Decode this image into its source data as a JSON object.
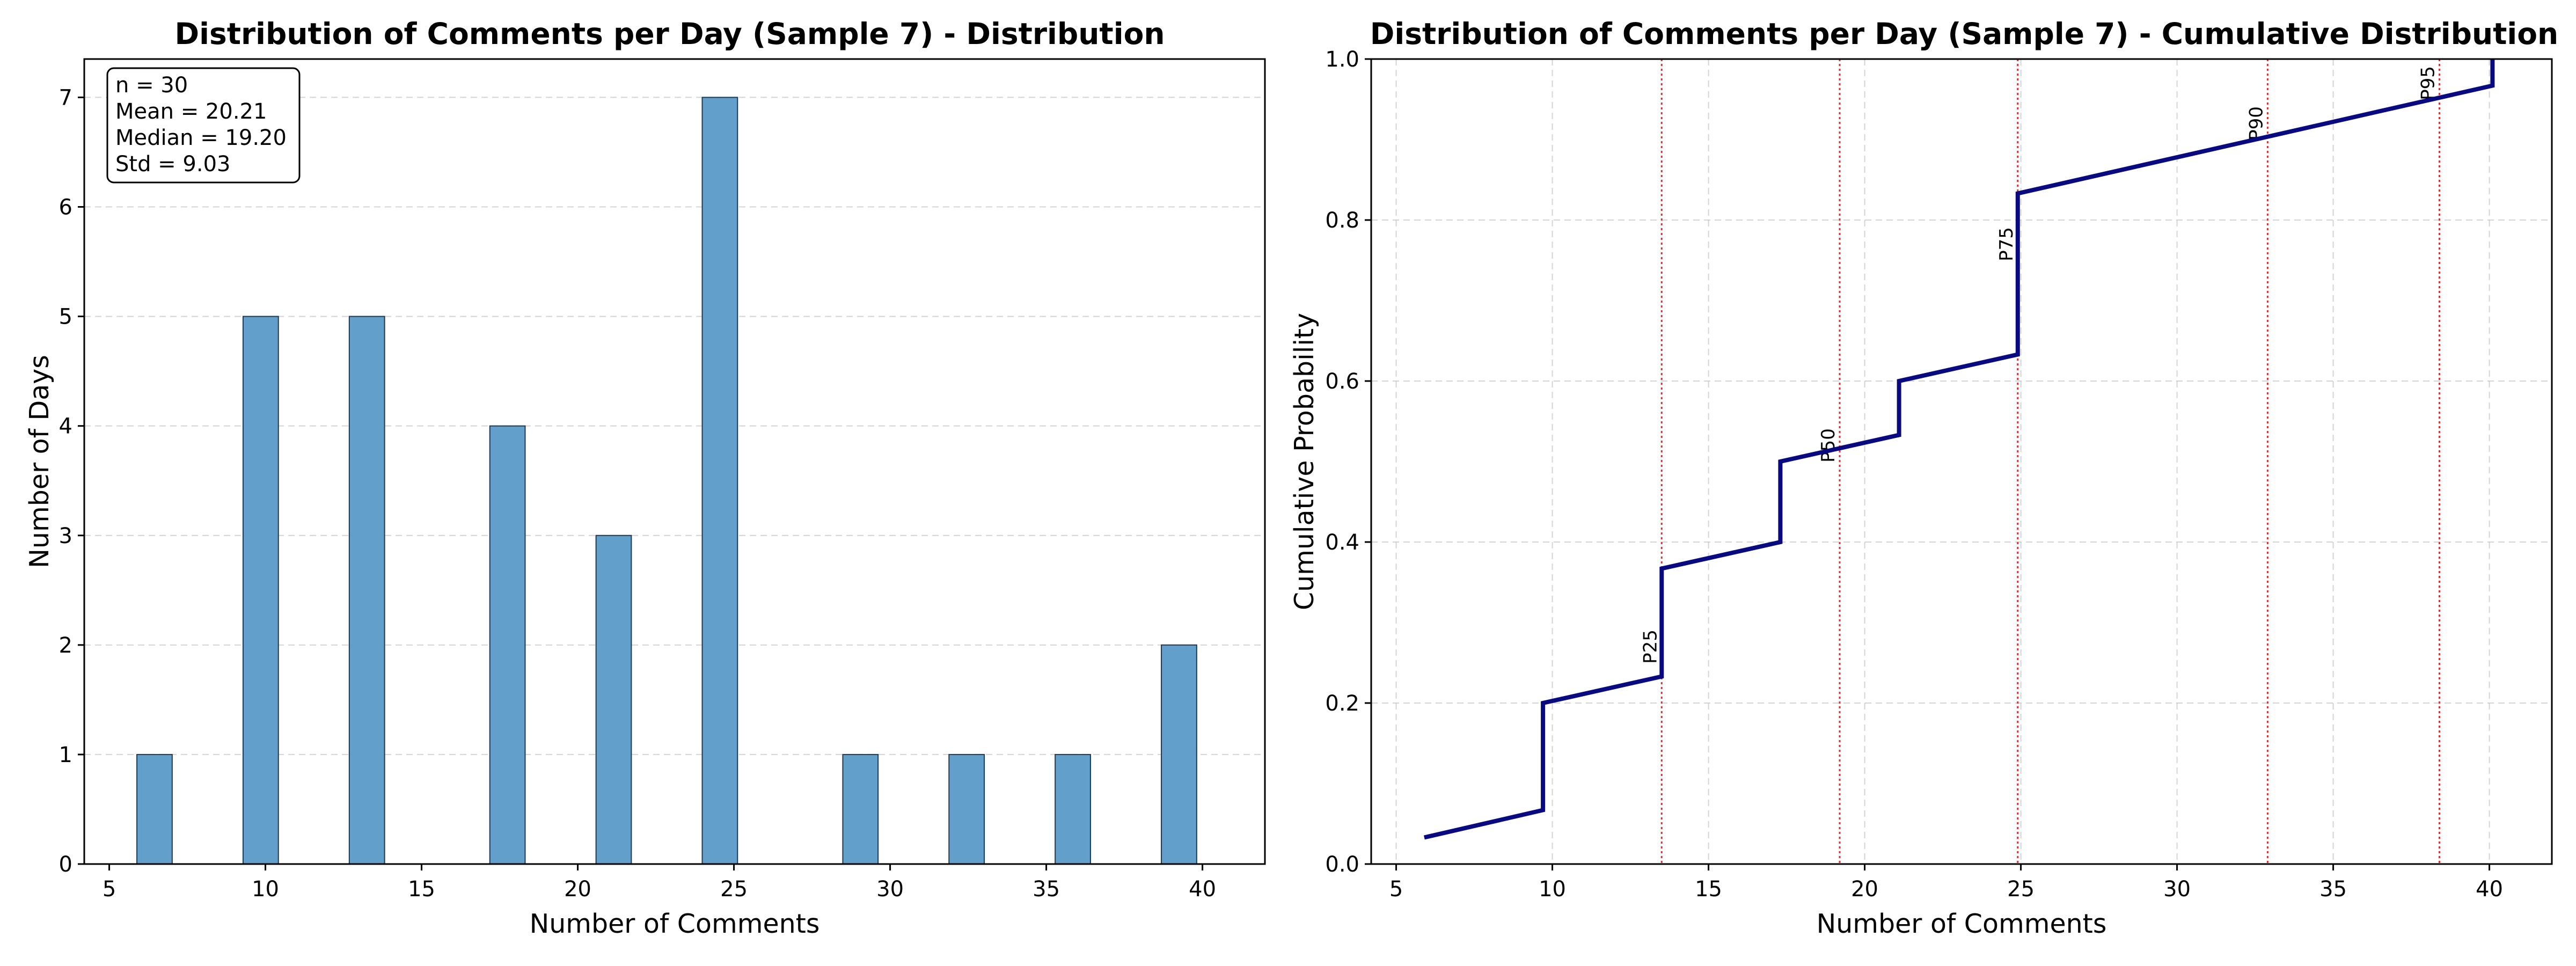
{
  "chart_data": [
    {
      "type": "bar",
      "title": "Distribution of Comments per Day (Sample 7) - Distribution",
      "xlabel": "Number of Comments",
      "ylabel": "Number of Days",
      "xlim": [
        4.2,
        42.0
      ],
      "ylim": [
        0,
        7.35
      ],
      "xticks": [
        5,
        10,
        15,
        20,
        25,
        30,
        35,
        40
      ],
      "yticks": [
        0,
        1,
        2,
        3,
        4,
        5,
        6,
        7
      ],
      "grid": "y-dashed",
      "bin_width": 1.13,
      "bars": [
        {
          "x": 6.45,
          "value": 1
        },
        {
          "x": 9.85,
          "value": 5
        },
        {
          "x": 13.25,
          "value": 5
        },
        {
          "x": 17.75,
          "value": 4
        },
        {
          "x": 21.15,
          "value": 3
        },
        {
          "x": 24.55,
          "value": 7
        },
        {
          "x": 29.05,
          "value": 1
        },
        {
          "x": 32.45,
          "value": 1
        },
        {
          "x": 35.85,
          "value": 1
        },
        {
          "x": 39.25,
          "value": 2
        }
      ],
      "stats_box": {
        "placement": "top-left",
        "lines": [
          "n = 30",
          "Mean = 20.21",
          "Median = 19.20",
          "Std = 9.03"
        ]
      },
      "colors": {
        "bar_fill": "#62a0cb",
        "bar_edge": "#1f3a52"
      }
    },
    {
      "type": "line",
      "title": "Distribution of Comments per Day (Sample 7) - Cumulative Distribution",
      "xlabel": "Number of Comments",
      "ylabel": "Cumulative Probability",
      "xlim": [
        4.2,
        42.0
      ],
      "ylim": [
        0,
        1.0
      ],
      "xticks": [
        5,
        10,
        15,
        20,
        25,
        30,
        35,
        40
      ],
      "yticks": [
        0.0,
        0.2,
        0.4,
        0.6,
        0.8,
        1.0
      ],
      "grid": "both-dashed",
      "points": [
        [
          5.9,
          0.033
        ],
        [
          9.7,
          0.067
        ],
        [
          9.7,
          0.2
        ],
        [
          13.5,
          0.233
        ],
        [
          13.5,
          0.367
        ],
        [
          17.3,
          0.4
        ],
        [
          17.3,
          0.5
        ],
        [
          21.1,
          0.533
        ],
        [
          21.1,
          0.6
        ],
        [
          24.9,
          0.633
        ],
        [
          24.9,
          0.833
        ],
        [
          40.1,
          0.967
        ],
        [
          40.1,
          1.0
        ]
      ],
      "percentiles": [
        {
          "label": "P25",
          "x": 13.5,
          "label_y": 0.27
        },
        {
          "label": "P50",
          "x": 19.2,
          "label_y": 0.52
        },
        {
          "label": "P75",
          "x": 24.9,
          "label_y": 0.77
        },
        {
          "label": "P90",
          "x": 32.9,
          "label_y": 0.92
        },
        {
          "label": "P95",
          "x": 38.4,
          "label_y": 0.97
        }
      ],
      "colors": {
        "line": "#0a0a80",
        "percentile_line": "#e03030"
      }
    }
  ]
}
